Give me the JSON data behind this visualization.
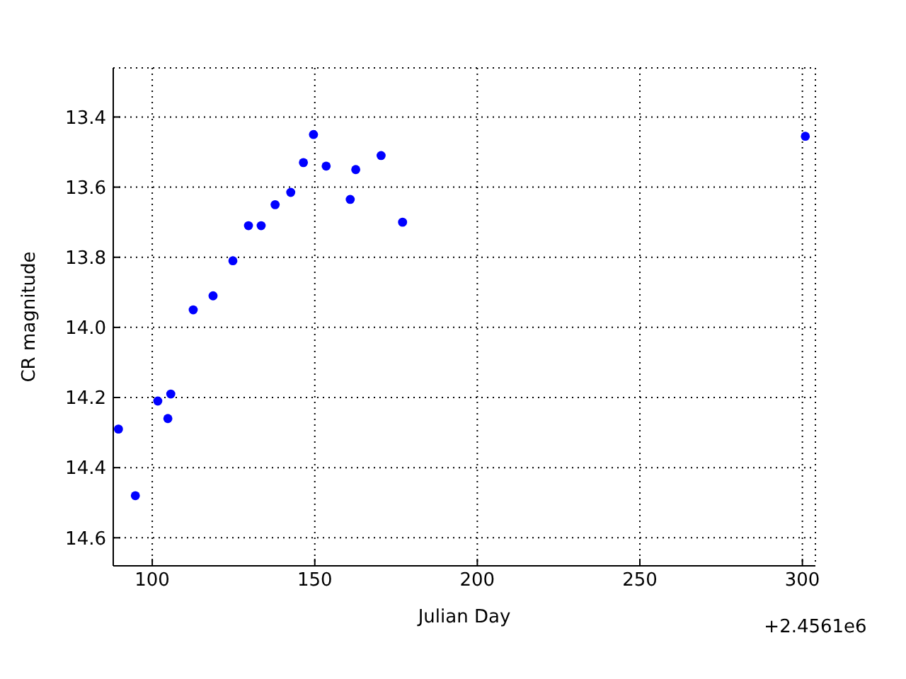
{
  "chart_data": {
    "type": "scatter",
    "xlabel": "Julian Day",
    "ylabel": "CR magnitude",
    "annotations": [
      "+2.4561e6"
    ],
    "x": [
      89.6,
      94.8,
      101.7,
      105.7,
      104.8,
      112.6,
      118.7,
      124.8,
      129.6,
      133.5,
      137.8,
      142.6,
      146.5,
      149.6,
      153.5,
      160.9,
      162.6,
      170.4,
      177,
      300.9
    ],
    "series": [
      {
        "color": "#0000ff",
        "values": [
          14.29,
          14.48,
          14.21,
          14.19,
          14.26,
          13.95,
          13.91,
          13.81,
          13.71,
          13.71,
          13.65,
          13.615,
          13.53,
          13.45,
          13.54,
          13.635,
          13.55,
          13.51,
          13.7,
          13.455
        ]
      }
    ],
    "xlim": [
      88,
      304
    ],
    "xticks": [
      100,
      150,
      200,
      250,
      300
    ],
    "ylim": [
      14.68,
      13.26
    ],
    "yticks": [
      13.4,
      13.6,
      13.8,
      {
        "value": 14,
        "label": "14.0"
      },
      14.2,
      14.4,
      14.6
    ],
    "grid": true,
    "marker": "circle",
    "legend": false
  }
}
